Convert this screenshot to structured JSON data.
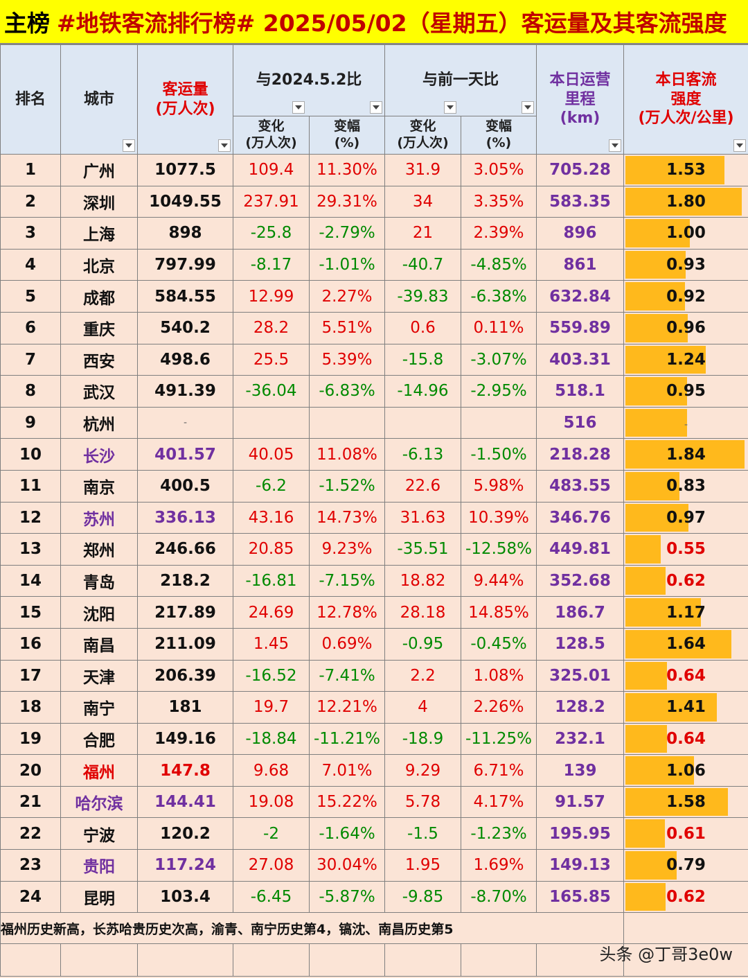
{
  "title": {
    "prefix": "主榜",
    "main": "#地铁客流排行榜# 2025/05/02（星期五）客运量及其客流强度"
  },
  "headers": {
    "rank": "排名",
    "city": "城市",
    "volume": "客运量\n(万人次)",
    "yoy": "与2024.5.2比",
    "dod": "与前一天比",
    "change": "变化\n(万人次)",
    "pct": "变幅\n(%)",
    "mileage": "本日运营\n里程\n(km)",
    "intensity": "本日客流\n强度\n(万人次/公里)"
  },
  "rows": [
    {
      "rank": "1",
      "city": "广州",
      "volume": "1077.5",
      "yoy_change": "109.4",
      "yoy_pct": "11.30%",
      "dod_change": "31.9",
      "dod_pct": "3.05%",
      "mileage": "705.28",
      "intensity": "1.53",
      "intensity_value": 1.53
    },
    {
      "rank": "2",
      "city": "深圳",
      "volume": "1049.55",
      "yoy_change": "237.91",
      "yoy_pct": "29.31%",
      "dod_change": "34",
      "dod_pct": "3.35%",
      "mileage": "583.35",
      "intensity": "1.80",
      "intensity_value": 1.8
    },
    {
      "rank": "3",
      "city": "上海",
      "volume": "898",
      "yoy_change": "-25.8",
      "yoy_pct": "-2.79%",
      "dod_change": "21",
      "dod_pct": "2.39%",
      "mileage": "896",
      "intensity": "1.00",
      "intensity_value": 1.0
    },
    {
      "rank": "4",
      "city": "北京",
      "volume": "797.99",
      "yoy_change": "-8.17",
      "yoy_pct": "-1.01%",
      "dod_change": "-40.7",
      "dod_pct": "-4.85%",
      "mileage": "861",
      "intensity": "0.93",
      "intensity_value": 0.93
    },
    {
      "rank": "5",
      "city": "成都",
      "volume": "584.55",
      "yoy_change": "12.99",
      "yoy_pct": "2.27%",
      "dod_change": "-39.83",
      "dod_pct": "-6.38%",
      "mileage": "632.84",
      "intensity": "0.92",
      "intensity_value": 0.92
    },
    {
      "rank": "6",
      "city": "重庆",
      "volume": "540.2",
      "yoy_change": "28.2",
      "yoy_pct": "5.51%",
      "dod_change": "0.6",
      "dod_pct": "0.11%",
      "mileage": "559.89",
      "intensity": "0.96",
      "intensity_value": 0.96
    },
    {
      "rank": "7",
      "city": "西安",
      "volume": "498.6",
      "yoy_change": "25.5",
      "yoy_pct": "5.39%",
      "dod_change": "-15.8",
      "dod_pct": "-3.07%",
      "mileage": "403.31",
      "intensity": "1.24",
      "intensity_value": 1.24
    },
    {
      "rank": "8",
      "city": "武汉",
      "volume": "491.39",
      "yoy_change": "-36.04",
      "yoy_pct": "-6.83%",
      "dod_change": "-14.96",
      "dod_pct": "-2.95%",
      "mileage": "518.1",
      "intensity": "0.95",
      "intensity_value": 0.95
    },
    {
      "rank": "9",
      "city": "杭州",
      "volume": "-",
      "yoy_change": "",
      "yoy_pct": "",
      "dod_change": "",
      "dod_pct": "",
      "mileage": "516",
      "intensity": "-",
      "intensity_value": 0.95
    },
    {
      "rank": "10",
      "city": "长沙",
      "volume": "401.57",
      "yoy_change": "40.05",
      "yoy_pct": "11.08%",
      "dod_change": "-6.13",
      "dod_pct": "-1.50%",
      "mileage": "218.28",
      "intensity": "1.84",
      "intensity_value": 1.84,
      "highlight": "purple"
    },
    {
      "rank": "11",
      "city": "南京",
      "volume": "400.5",
      "yoy_change": "-6.2",
      "yoy_pct": "-1.52%",
      "dod_change": "22.6",
      "dod_pct": "5.98%",
      "mileage": "483.55",
      "intensity": "0.83",
      "intensity_value": 0.83
    },
    {
      "rank": "12",
      "city": "苏州",
      "volume": "336.13",
      "yoy_change": "43.16",
      "yoy_pct": "14.73%",
      "dod_change": "31.63",
      "dod_pct": "10.39%",
      "mileage": "346.76",
      "intensity": "0.97",
      "intensity_value": 0.97,
      "highlight": "purple"
    },
    {
      "rank": "13",
      "city": "郑州",
      "volume": "246.66",
      "yoy_change": "20.85",
      "yoy_pct": "9.23%",
      "dod_change": "-35.51",
      "dod_pct": "-12.58%",
      "mileage": "449.81",
      "intensity": "0.55",
      "intensity_value": 0.55
    },
    {
      "rank": "14",
      "city": "青岛",
      "volume": "218.2",
      "yoy_change": "-16.81",
      "yoy_pct": "-7.15%",
      "dod_change": "18.82",
      "dod_pct": "9.44%",
      "mileage": "352.68",
      "intensity": "0.62",
      "intensity_value": 0.62
    },
    {
      "rank": "15",
      "city": "沈阳",
      "volume": "217.89",
      "yoy_change": "24.69",
      "yoy_pct": "12.78%",
      "dod_change": "28.18",
      "dod_pct": "14.85%",
      "mileage": "186.7",
      "intensity": "1.17",
      "intensity_value": 1.17
    },
    {
      "rank": "16",
      "city": "南昌",
      "volume": "211.09",
      "yoy_change": "1.45",
      "yoy_pct": "0.69%",
      "dod_change": "-0.95",
      "dod_pct": "-0.45%",
      "mileage": "128.5",
      "intensity": "1.64",
      "intensity_value": 1.64
    },
    {
      "rank": "17",
      "city": "天津",
      "volume": "206.39",
      "yoy_change": "-16.52",
      "yoy_pct": "-7.41%",
      "dod_change": "2.2",
      "dod_pct": "1.08%",
      "mileage": "325.01",
      "intensity": "0.64",
      "intensity_value": 0.64
    },
    {
      "rank": "18",
      "city": "南宁",
      "volume": "181",
      "yoy_change": "19.7",
      "yoy_pct": "12.21%",
      "dod_change": "4",
      "dod_pct": "2.26%",
      "mileage": "128.2",
      "intensity": "1.41",
      "intensity_value": 1.41
    },
    {
      "rank": "19",
      "city": "合肥",
      "volume": "149.16",
      "yoy_change": "-18.84",
      "yoy_pct": "-11.21%",
      "dod_change": "-18.9",
      "dod_pct": "-11.25%",
      "mileage": "232.1",
      "intensity": "0.64",
      "intensity_value": 0.64
    },
    {
      "rank": "20",
      "city": "福州",
      "volume": "147.8",
      "yoy_change": "9.68",
      "yoy_pct": "7.01%",
      "dod_change": "9.29",
      "dod_pct": "6.71%",
      "mileage": "139",
      "intensity": "1.06",
      "intensity_value": 1.06,
      "highlight": "red"
    },
    {
      "rank": "21",
      "city": "哈尔滨",
      "volume": "144.41",
      "yoy_change": "19.08",
      "yoy_pct": "15.22%",
      "dod_change": "5.78",
      "dod_pct": "4.17%",
      "mileage": "91.57",
      "intensity": "1.58",
      "intensity_value": 1.58,
      "highlight": "purple"
    },
    {
      "rank": "22",
      "city": "宁波",
      "volume": "120.2",
      "yoy_change": "-2",
      "yoy_pct": "-1.64%",
      "dod_change": "-1.5",
      "dod_pct": "-1.23%",
      "mileage": "195.95",
      "intensity": "0.61",
      "intensity_value": 0.61
    },
    {
      "rank": "23",
      "city": "贵阳",
      "volume": "117.24",
      "yoy_change": "27.08",
      "yoy_pct": "30.04%",
      "dod_change": "1.95",
      "dod_pct": "1.69%",
      "mileage": "149.13",
      "intensity": "0.79",
      "intensity_value": 0.79,
      "highlight": "purple"
    },
    {
      "rank": "24",
      "city": "昆明",
      "volume": "103.4",
      "yoy_change": "-6.45",
      "yoy_pct": "-5.87%",
      "dod_change": "-9.85",
      "dod_pct": "-8.70%",
      "mileage": "165.85",
      "intensity": "0.62",
      "intensity_value": 0.62
    }
  ],
  "note": "福州历史新高，长苏哈贵历史次高，渝青、南宁历史第4，镐沈、南昌历史第5",
  "footer": "头条 @丁哥3e0w",
  "colors": {
    "title_bg": "#ffff00",
    "header_bg": "#dde7f3",
    "cell_bg": "#fbe4d6",
    "bar": "#ffb91c",
    "positive": "#e00000",
    "negative": "#008a00",
    "purple": "#7030a0"
  }
}
